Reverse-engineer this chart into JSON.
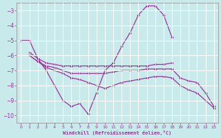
{
  "xlabel": "Windchill (Refroidissement éolien,°C)",
  "background_color": "#c8eaea",
  "grid_color": "#ffffff",
  "line_color": "#993399",
  "xlim": [
    -0.5,
    23.5
  ],
  "ylim": [
    -10.5,
    -2.5
  ],
  "xticks": [
    0,
    1,
    2,
    3,
    4,
    5,
    6,
    7,
    8,
    9,
    10,
    11,
    12,
    13,
    14,
    15,
    16,
    17,
    18,
    19,
    20,
    21,
    22,
    23
  ],
  "yticks": [
    -10,
    -9,
    -8,
    -7,
    -6,
    -5,
    -4,
    -3
  ],
  "s1_x": [
    0,
    1,
    2,
    3,
    4,
    5,
    6,
    7,
    8,
    9,
    10,
    11,
    12,
    13,
    14,
    15,
    16,
    17,
    18
  ],
  "s1_y": [
    -5.0,
    -5.0,
    -6.2,
    -7.0,
    -8.0,
    -9.0,
    -9.4,
    -9.2,
    -9.9,
    -8.5,
    -7.0,
    -6.5,
    -5.4,
    -4.5,
    -3.3,
    -2.7,
    -2.7,
    -3.3,
    -4.8
  ],
  "s2_x": [
    1,
    2,
    3,
    4,
    5,
    6,
    7,
    8,
    9,
    10,
    11,
    12,
    13,
    14,
    15,
    16,
    17,
    18
  ],
  "s2_y": [
    -5.8,
    -6.2,
    -6.5,
    -6.6,
    -6.7,
    -6.7,
    -6.7,
    -6.7,
    -6.7,
    -6.7,
    -6.7,
    -6.7,
    -6.7,
    -6.7,
    -6.7,
    -6.6,
    -6.6,
    -6.5
  ],
  "s3_x": [
    1,
    2,
    3,
    4,
    5,
    6,
    7,
    8,
    9,
    10,
    11,
    12,
    13,
    14,
    15,
    16,
    17,
    18,
    19,
    20,
    21,
    22,
    23
  ],
  "s3_y": [
    -6.0,
    -6.4,
    -6.7,
    -6.8,
    -7.0,
    -7.2,
    -7.2,
    -7.2,
    -7.2,
    -7.2,
    -7.1,
    -7.0,
    -7.0,
    -7.0,
    -6.9,
    -6.9,
    -6.9,
    -6.9,
    -7.5,
    -7.7,
    -7.8,
    -8.5,
    -9.4
  ],
  "s4_x": [
    1,
    2,
    3,
    4,
    5,
    6,
    7,
    8,
    9,
    10,
    11,
    12,
    13,
    14,
    15,
    16,
    17,
    18,
    19,
    20,
    21,
    22,
    23
  ],
  "s4_y": [
    -6.0,
    -6.4,
    -6.8,
    -7.0,
    -7.2,
    -7.5,
    -7.6,
    -7.8,
    -8.0,
    -8.2,
    -8.0,
    -7.8,
    -7.7,
    -7.6,
    -7.5,
    -7.4,
    -7.4,
    -7.5,
    -8.0,
    -8.3,
    -8.5,
    -9.0,
    -9.5
  ]
}
